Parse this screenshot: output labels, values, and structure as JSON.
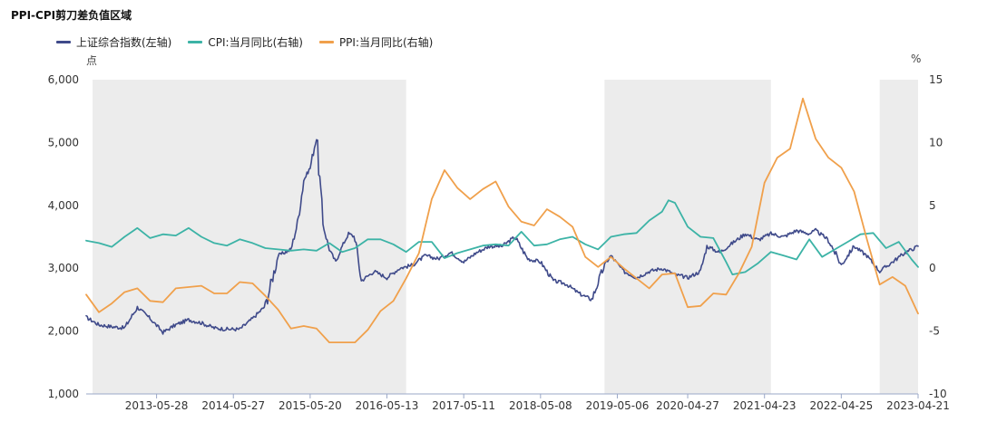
{
  "chart_data": {
    "type": "line",
    "title": "PPI-CPI剪刀差负值区域",
    "y_left": {
      "unit": "点",
      "min": 1000,
      "max": 6000,
      "ticks": [
        1000,
        2000,
        3000,
        4000,
        5000,
        6000
      ],
      "tick_labels": [
        "1,000",
        "2,000",
        "3,000",
        "4,000",
        "5,000",
        "6,000"
      ]
    },
    "y_right": {
      "unit": "%",
      "min": -10,
      "max": 15,
      "ticks": [
        -10,
        -5,
        0,
        5,
        10,
        15
      ],
      "tick_labels": [
        "-10",
        "-5",
        "0",
        "5",
        "10",
        "15"
      ]
    },
    "x_range": [
      "2012-06",
      "2023-04"
    ],
    "x_ticks": [
      {
        "date": "2013-05",
        "label": "2013-05-28"
      },
      {
        "date": "2014-05",
        "label": "2014-05-27"
      },
      {
        "date": "2015-05",
        "label": "2015-05-20"
      },
      {
        "date": "2016-05",
        "label": "2016-05-13"
      },
      {
        "date": "2017-05",
        "label": "2017-05-11"
      },
      {
        "date": "2018-05",
        "label": "2018-05-08"
      },
      {
        "date": "2019-05",
        "label": "2019-05-06"
      },
      {
        "date": "2020-04",
        "label": "2020-04-27"
      },
      {
        "date": "2021-04",
        "label": "2021-04-23"
      },
      {
        "date": "2022-04",
        "label": "2022-04-25"
      },
      {
        "date": "2023-04",
        "label": "2023-04-21"
      }
    ],
    "shaded_regions": [
      {
        "start": "2012-07",
        "end": "2016-08"
      },
      {
        "start": "2019-03",
        "end": "2021-05"
      },
      {
        "start": "2022-10",
        "end": "2023-04"
      }
    ],
    "series": [
      {
        "name": "上证综合指数(左轴)",
        "axis": "left",
        "color": "#3f4a8a",
        "points": [
          [
            "2012-06",
            2220
          ],
          [
            "2012-08",
            2100
          ],
          [
            "2012-10",
            2070
          ],
          [
            "2012-12",
            2050
          ],
          [
            "2013-02",
            2380
          ],
          [
            "2013-04",
            2200
          ],
          [
            "2013-06",
            1980
          ],
          [
            "2013-08",
            2100
          ],
          [
            "2013-10",
            2180
          ],
          [
            "2013-12",
            2130
          ],
          [
            "2014-02",
            2050
          ],
          [
            "2014-04",
            2030
          ],
          [
            "2014-06",
            2030
          ],
          [
            "2014-08",
            2200
          ],
          [
            "2014-10",
            2400
          ],
          [
            "2014-12",
            3200
          ],
          [
            "2015-02",
            3300
          ],
          [
            "2015-03",
            3700
          ],
          [
            "2015-04",
            4400
          ],
          [
            "2015-05",
            4600
          ],
          [
            "2015-06",
            5100
          ],
          [
            "2015-07",
            3700
          ],
          [
            "2015-08",
            3300
          ],
          [
            "2015-09",
            3100
          ],
          [
            "2015-10",
            3350
          ],
          [
            "2015-11",
            3550
          ],
          [
            "2015-12",
            3500
          ],
          [
            "2016-01",
            2800
          ],
          [
            "2016-03",
            2950
          ],
          [
            "2016-05",
            2850
          ],
          [
            "2016-07",
            3000
          ],
          [
            "2016-09",
            3050
          ],
          [
            "2016-11",
            3200
          ],
          [
            "2017-01",
            3150
          ],
          [
            "2017-03",
            3250
          ],
          [
            "2017-05",
            3100
          ],
          [
            "2017-07",
            3250
          ],
          [
            "2017-09",
            3350
          ],
          [
            "2017-11",
            3350
          ],
          [
            "2018-01",
            3500
          ],
          [
            "2018-03",
            3150
          ],
          [
            "2018-05",
            3100
          ],
          [
            "2018-07",
            2800
          ],
          [
            "2018-09",
            2750
          ],
          [
            "2018-11",
            2600
          ],
          [
            "2019-01",
            2500
          ],
          [
            "2019-03",
            3050
          ],
          [
            "2019-04",
            3200
          ],
          [
            "2019-06",
            2950
          ],
          [
            "2019-08",
            2850
          ],
          [
            "2019-10",
            2950
          ],
          [
            "2019-12",
            3000
          ],
          [
            "2020-02",
            2900
          ],
          [
            "2020-04",
            2850
          ],
          [
            "2020-06",
            2950
          ],
          [
            "2020-07",
            3350
          ],
          [
            "2020-09",
            3250
          ],
          [
            "2020-11",
            3400
          ],
          [
            "2021-01",
            3550
          ],
          [
            "2021-03",
            3450
          ],
          [
            "2021-05",
            3550
          ],
          [
            "2021-07",
            3500
          ],
          [
            "2021-09",
            3600
          ],
          [
            "2021-11",
            3550
          ],
          [
            "2021-12",
            3600
          ],
          [
            "2022-02",
            3450
          ],
          [
            "2022-04",
            3050
          ],
          [
            "2022-06",
            3350
          ],
          [
            "2022-08",
            3200
          ],
          [
            "2022-10",
            2950
          ],
          [
            "2022-12",
            3100
          ],
          [
            "2023-02",
            3250
          ],
          [
            "2023-04",
            3350
          ]
        ]
      },
      {
        "name": "CPI:当月同比(右轴)",
        "axis": "right",
        "color": "#3cb3a6",
        "points": [
          [
            "2012-06",
            2.2
          ],
          [
            "2012-08",
            2.0
          ],
          [
            "2012-10",
            1.7
          ],
          [
            "2012-12",
            2.5
          ],
          [
            "2013-02",
            3.2
          ],
          [
            "2013-04",
            2.4
          ],
          [
            "2013-06",
            2.7
          ],
          [
            "2013-08",
            2.6
          ],
          [
            "2013-10",
            3.2
          ],
          [
            "2013-12",
            2.5
          ],
          [
            "2014-02",
            2.0
          ],
          [
            "2014-04",
            1.8
          ],
          [
            "2014-06",
            2.3
          ],
          [
            "2014-08",
            2.0
          ],
          [
            "2014-10",
            1.6
          ],
          [
            "2014-12",
            1.5
          ],
          [
            "2015-02",
            1.4
          ],
          [
            "2015-04",
            1.5
          ],
          [
            "2015-06",
            1.4
          ],
          [
            "2015-08",
            2.0
          ],
          [
            "2015-10",
            1.3
          ],
          [
            "2015-12",
            1.6
          ],
          [
            "2016-02",
            2.3
          ],
          [
            "2016-04",
            2.3
          ],
          [
            "2016-06",
            1.9
          ],
          [
            "2016-08",
            1.3
          ],
          [
            "2016-10",
            2.1
          ],
          [
            "2016-12",
            2.1
          ],
          [
            "2017-02",
            0.8
          ],
          [
            "2017-04",
            1.2
          ],
          [
            "2017-06",
            1.5
          ],
          [
            "2017-08",
            1.8
          ],
          [
            "2017-10",
            1.9
          ],
          [
            "2017-12",
            1.8
          ],
          [
            "2018-02",
            2.9
          ],
          [
            "2018-04",
            1.8
          ],
          [
            "2018-06",
            1.9
          ],
          [
            "2018-08",
            2.3
          ],
          [
            "2018-10",
            2.5
          ],
          [
            "2018-12",
            1.9
          ],
          [
            "2019-02",
            1.5
          ],
          [
            "2019-04",
            2.5
          ],
          [
            "2019-06",
            2.7
          ],
          [
            "2019-08",
            2.8
          ],
          [
            "2019-10",
            3.8
          ],
          [
            "2019-12",
            4.5
          ],
          [
            "2020-01",
            5.4
          ],
          [
            "2020-02",
            5.2
          ],
          [
            "2020-04",
            3.3
          ],
          [
            "2020-06",
            2.5
          ],
          [
            "2020-08",
            2.4
          ],
          [
            "2020-10",
            0.5
          ],
          [
            "2020-11",
            -0.5
          ],
          [
            "2021-01",
            -0.3
          ],
          [
            "2021-03",
            0.4
          ],
          [
            "2021-05",
            1.3
          ],
          [
            "2021-07",
            1.0
          ],
          [
            "2021-09",
            0.7
          ],
          [
            "2021-11",
            2.3
          ],
          [
            "2022-01",
            0.9
          ],
          [
            "2022-03",
            1.5
          ],
          [
            "2022-05",
            2.1
          ],
          [
            "2022-07",
            2.7
          ],
          [
            "2022-09",
            2.8
          ],
          [
            "2022-11",
            1.6
          ],
          [
            "2023-01",
            2.1
          ],
          [
            "2023-03",
            0.7
          ],
          [
            "2023-04",
            0.1
          ]
        ]
      },
      {
        "name": "PPI:当月同比(右轴)",
        "axis": "right",
        "color": "#f0a04b",
        "points": [
          [
            "2012-06",
            -2.1
          ],
          [
            "2012-08",
            -3.5
          ],
          [
            "2012-10",
            -2.8
          ],
          [
            "2012-12",
            -1.9
          ],
          [
            "2013-02",
            -1.6
          ],
          [
            "2013-04",
            -2.6
          ],
          [
            "2013-06",
            -2.7
          ],
          [
            "2013-08",
            -1.6
          ],
          [
            "2013-10",
            -1.5
          ],
          [
            "2013-12",
            -1.4
          ],
          [
            "2014-02",
            -2.0
          ],
          [
            "2014-04",
            -2.0
          ],
          [
            "2014-06",
            -1.1
          ],
          [
            "2014-08",
            -1.2
          ],
          [
            "2014-10",
            -2.2
          ],
          [
            "2014-12",
            -3.3
          ],
          [
            "2015-02",
            -4.8
          ],
          [
            "2015-04",
            -4.6
          ],
          [
            "2015-06",
            -4.8
          ],
          [
            "2015-08",
            -5.9
          ],
          [
            "2015-10",
            -5.9
          ],
          [
            "2015-12",
            -5.9
          ],
          [
            "2016-02",
            -4.9
          ],
          [
            "2016-04",
            -3.4
          ],
          [
            "2016-06",
            -2.6
          ],
          [
            "2016-08",
            -0.8
          ],
          [
            "2016-10",
            1.2
          ],
          [
            "2016-12",
            5.5
          ],
          [
            "2017-02",
            7.8
          ],
          [
            "2017-04",
            6.4
          ],
          [
            "2017-06",
            5.5
          ],
          [
            "2017-08",
            6.3
          ],
          [
            "2017-10",
            6.9
          ],
          [
            "2017-12",
            4.9
          ],
          [
            "2018-02",
            3.7
          ],
          [
            "2018-04",
            3.4
          ],
          [
            "2018-06",
            4.7
          ],
          [
            "2018-08",
            4.1
          ],
          [
            "2018-10",
            3.3
          ],
          [
            "2018-12",
            0.9
          ],
          [
            "2019-02",
            0.1
          ],
          [
            "2019-04",
            0.9
          ],
          [
            "2019-06",
            0.0
          ],
          [
            "2019-08",
            -0.8
          ],
          [
            "2019-10",
            -1.6
          ],
          [
            "2019-12",
            -0.5
          ],
          [
            "2020-02",
            -0.4
          ],
          [
            "2020-04",
            -3.1
          ],
          [
            "2020-06",
            -3.0
          ],
          [
            "2020-08",
            -2.0
          ],
          [
            "2020-10",
            -2.1
          ],
          [
            "2020-12",
            -0.4
          ],
          [
            "2021-02",
            1.7
          ],
          [
            "2021-04",
            6.8
          ],
          [
            "2021-06",
            8.8
          ],
          [
            "2021-08",
            9.5
          ],
          [
            "2021-10",
            13.5
          ],
          [
            "2021-12",
            10.3
          ],
          [
            "2022-02",
            8.8
          ],
          [
            "2022-04",
            8.0
          ],
          [
            "2022-06",
            6.1
          ],
          [
            "2022-08",
            2.3
          ],
          [
            "2022-10",
            -1.3
          ],
          [
            "2022-12",
            -0.7
          ],
          [
            "2023-02",
            -1.4
          ],
          [
            "2023-04",
            -3.6
          ]
        ]
      }
    ]
  }
}
